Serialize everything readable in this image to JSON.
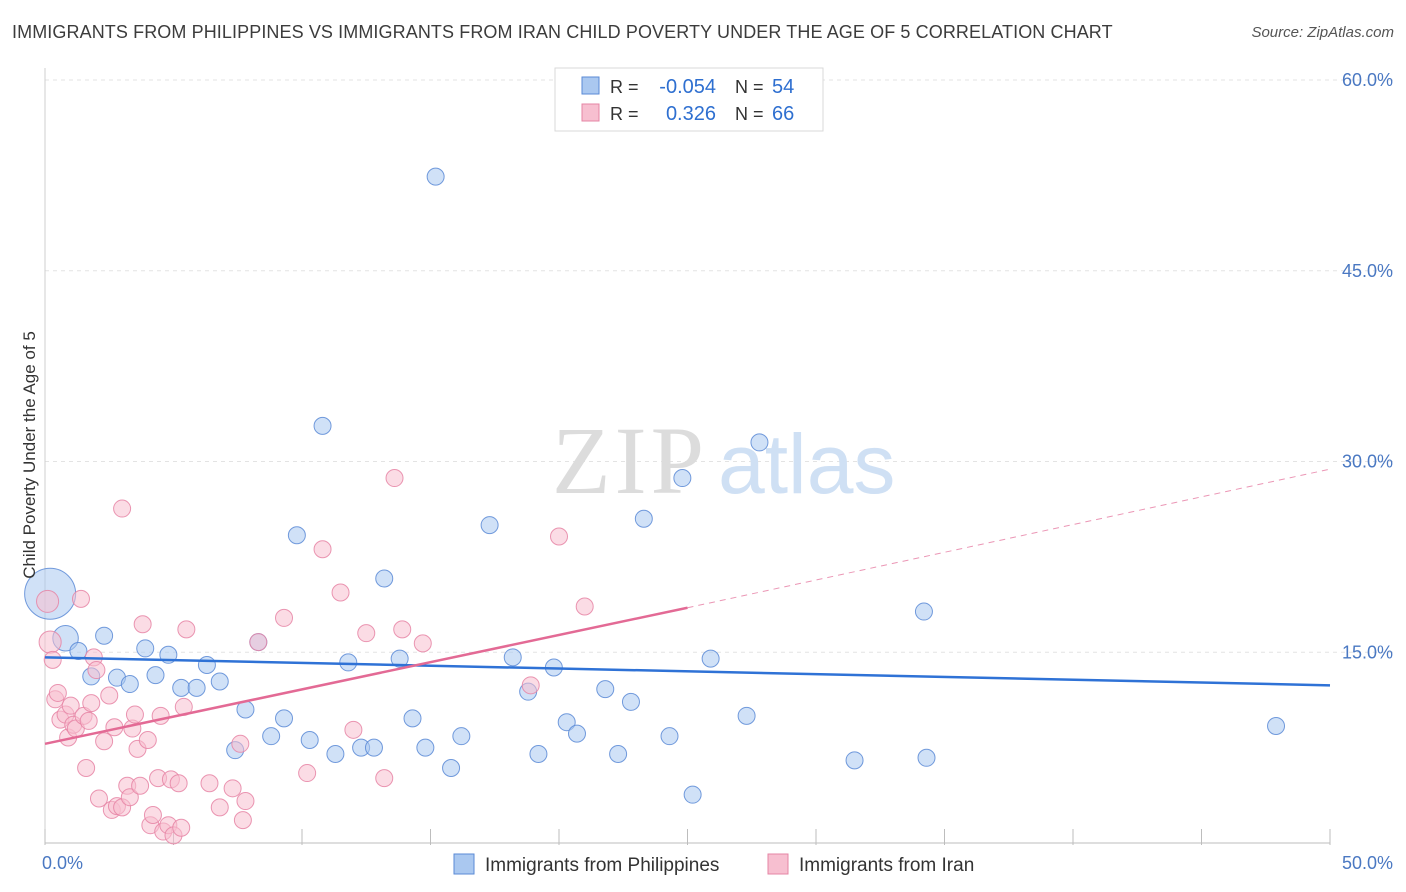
{
  "title": "IMMIGRANTS FROM PHILIPPINES VS IMMIGRANTS FROM IRAN CHILD POVERTY UNDER THE AGE OF 5 CORRELATION CHART",
  "source": "Source: ZipAtlas.com",
  "watermark": {
    "zip": "ZIP",
    "atlas": "atlas"
  },
  "legend_box": {
    "rows": [
      {
        "r_label": "R =",
        "r_value": "-0.054",
        "n_label": "N =",
        "n_value": "54",
        "color": "#aac8f0",
        "stroke": "#5a8ad6"
      },
      {
        "r_label": "R =",
        "r_value": "0.326",
        "n_label": "N =",
        "n_value": "66",
        "color": "#f7bfd0",
        "stroke": "#e684a4"
      }
    ]
  },
  "bottom_legend": [
    {
      "label": "Immigrants from Philippines",
      "color": "#aac8f0",
      "stroke": "#5a8ad6"
    },
    {
      "label": "Immigrants from Iran",
      "color": "#f7bfd0",
      "stroke": "#e684a4"
    }
  ],
  "chart_data": {
    "type": "scatter",
    "title": "IMMIGRANTS FROM PHILIPPINES VS IMMIGRANTS FROM IRAN CHILD POVERTY UNDER THE AGE OF 5 CORRELATION CHART",
    "xlabel": "",
    "ylabel": "Child Poverty Under the Age of 5",
    "xlim": [
      0,
      50
    ],
    "ylim": [
      0,
      60
    ],
    "x_tick_labels": [
      "0.0%",
      "50.0%"
    ],
    "y_ticks": [
      15,
      30,
      45,
      60
    ],
    "y_tick_labels": [
      "15.0%",
      "30.0%",
      "45.0%",
      "60.0%"
    ],
    "grid": true,
    "legend_position": "top-center",
    "series": [
      {
        "name": "Immigrants from Philippines",
        "color": "#aac8f0",
        "stroke": "#5a8ad6",
        "line_color": "#2f72d6",
        "trend": {
          "x": [
            0,
            50
          ],
          "y": [
            14.6,
            12.4
          ]
        },
        "points": [
          [
            0.2,
            19.6,
            3.0
          ],
          [
            0.8,
            16.1,
            1.5
          ],
          [
            1.3,
            15.1,
            1.0
          ],
          [
            1.8,
            13.1,
            1.0
          ],
          [
            2.3,
            16.3,
            1.0
          ],
          [
            2.8,
            13.0,
            1.0
          ],
          [
            3.3,
            12.5,
            1.0
          ],
          [
            3.9,
            15.3,
            1.0
          ],
          [
            4.3,
            13.2,
            1.0
          ],
          [
            4.8,
            14.8,
            1.0
          ],
          [
            5.3,
            12.2,
            1.0
          ],
          [
            5.9,
            12.2,
            1.0
          ],
          [
            6.3,
            14.0,
            1.0
          ],
          [
            6.8,
            12.7,
            1.0
          ],
          [
            7.4,
            7.3,
            1.0
          ],
          [
            7.8,
            10.5,
            1.0
          ],
          [
            8.3,
            15.8,
            1.0
          ],
          [
            8.8,
            8.4,
            1.0
          ],
          [
            9.3,
            9.8,
            1.0
          ],
          [
            9.8,
            24.2,
            1.0
          ],
          [
            10.3,
            8.1,
            1.0
          ],
          [
            10.8,
            32.8,
            1.0
          ],
          [
            11.3,
            7.0,
            1.0
          ],
          [
            11.8,
            14.2,
            1.0
          ],
          [
            12.3,
            7.5,
            1.0
          ],
          [
            12.8,
            7.5,
            1.0
          ],
          [
            13.2,
            20.8,
            1.0
          ],
          [
            13.8,
            14.5,
            1.0
          ],
          [
            14.3,
            9.8,
            1.0
          ],
          [
            14.8,
            7.5,
            1.0
          ],
          [
            15.2,
            52.4,
            1.0
          ],
          [
            15.8,
            5.9,
            1.0
          ],
          [
            16.2,
            8.4,
            1.0
          ],
          [
            17.3,
            25.0,
            1.0
          ],
          [
            18.2,
            14.6,
            1.0
          ],
          [
            18.8,
            11.9,
            1.0
          ],
          [
            19.2,
            7.0,
            1.0
          ],
          [
            19.8,
            13.8,
            1.0
          ],
          [
            20.3,
            9.5,
            1.0
          ],
          [
            20.7,
            8.6,
            1.0
          ],
          [
            21.8,
            12.1,
            1.0
          ],
          [
            22.3,
            7.0,
            1.0
          ],
          [
            22.8,
            11.1,
            1.0
          ],
          [
            23.3,
            25.5,
            1.0
          ],
          [
            24.3,
            8.4,
            1.0
          ],
          [
            24.8,
            28.7,
            1.0
          ],
          [
            25.2,
            3.8,
            1.0
          ],
          [
            25.9,
            14.5,
            1.0
          ],
          [
            27.3,
            10.0,
            1.0
          ],
          [
            27.8,
            31.5,
            1.0
          ],
          [
            31.5,
            6.5,
            1.0
          ],
          [
            34.2,
            18.2,
            1.0
          ],
          [
            34.3,
            6.7,
            1.0
          ],
          [
            47.9,
            9.2,
            1.0
          ]
        ]
      },
      {
        "name": "Immigrants from Iran",
        "color": "#f7bfd0",
        "stroke": "#e684a4",
        "line_color": "#e36a95",
        "trend": {
          "x": [
            0,
            25
          ],
          "y": [
            7.8,
            18.5
          ]
        },
        "trend_dashed": {
          "x": [
            25,
            50
          ],
          "y": [
            18.5,
            29.4
          ]
        },
        "points": [
          [
            0.1,
            19.0,
            1.3
          ],
          [
            0.2,
            15.8,
            1.3
          ],
          [
            0.3,
            14.4,
            1.0
          ],
          [
            0.4,
            11.3,
            1.0
          ],
          [
            0.5,
            11.8,
            1.0
          ],
          [
            0.6,
            9.7,
            1.0
          ],
          [
            0.8,
            10.1,
            1.0
          ],
          [
            0.9,
            8.3,
            1.0
          ],
          [
            1.0,
            10.8,
            1.0
          ],
          [
            1.1,
            9.3,
            1.0
          ],
          [
            1.2,
            9.0,
            1.0
          ],
          [
            1.4,
            19.2,
            1.0
          ],
          [
            1.5,
            10.0,
            1.0
          ],
          [
            1.6,
            5.9,
            1.0
          ],
          [
            1.7,
            9.6,
            1.0
          ],
          [
            1.8,
            11.0,
            1.0
          ],
          [
            1.9,
            14.6,
            1.0
          ],
          [
            2.0,
            13.6,
            1.0
          ],
          [
            2.1,
            3.5,
            1.0
          ],
          [
            2.3,
            8.0,
            1.0
          ],
          [
            2.5,
            11.6,
            1.0
          ],
          [
            2.6,
            2.6,
            1.0
          ],
          [
            2.7,
            9.1,
            1.0
          ],
          [
            2.8,
            2.9,
            1.0
          ],
          [
            3.0,
            2.8,
            1.0
          ],
          [
            3.0,
            26.3,
            1.0
          ],
          [
            3.2,
            4.5,
            1.0
          ],
          [
            3.3,
            3.6,
            1.0
          ],
          [
            3.4,
            9.0,
            1.0
          ],
          [
            3.5,
            10.1,
            1.0
          ],
          [
            3.6,
            7.4,
            1.0
          ],
          [
            3.7,
            4.5,
            1.0
          ],
          [
            3.8,
            17.2,
            1.0
          ],
          [
            4.0,
            8.1,
            1.0
          ],
          [
            4.1,
            1.4,
            1.0
          ],
          [
            4.2,
            2.2,
            1.0
          ],
          [
            4.4,
            5.1,
            1.0
          ],
          [
            4.5,
            10.0,
            1.0
          ],
          [
            4.6,
            0.9,
            1.0
          ],
          [
            4.8,
            1.4,
            1.0
          ],
          [
            4.9,
            5.0,
            1.0
          ],
          [
            5.0,
            0.6,
            1.0
          ],
          [
            5.2,
            4.7,
            1.0
          ],
          [
            5.3,
            1.2,
            1.0
          ],
          [
            5.4,
            10.7,
            1.0
          ],
          [
            5.5,
            16.8,
            1.0
          ],
          [
            6.4,
            4.7,
            1.0
          ],
          [
            6.8,
            2.8,
            1.0
          ],
          [
            7.3,
            4.3,
            1.0
          ],
          [
            7.6,
            7.8,
            1.0
          ],
          [
            7.7,
            1.8,
            1.0
          ],
          [
            7.8,
            3.3,
            1.0
          ],
          [
            8.3,
            15.8,
            1.0
          ],
          [
            9.3,
            17.7,
            1.0
          ],
          [
            10.2,
            5.5,
            1.0
          ],
          [
            10.8,
            23.1,
            1.0
          ],
          [
            11.5,
            19.7,
            1.0
          ],
          [
            12.0,
            8.9,
            1.0
          ],
          [
            12.5,
            16.5,
            1.0
          ],
          [
            13.2,
            5.1,
            1.0
          ],
          [
            13.6,
            28.7,
            1.0
          ],
          [
            13.9,
            16.8,
            1.0
          ],
          [
            14.7,
            15.7,
            1.0
          ],
          [
            18.9,
            12.4,
            1.0
          ],
          [
            20.0,
            24.1,
            1.0
          ],
          [
            21.0,
            18.6,
            1.0
          ]
        ]
      }
    ]
  }
}
